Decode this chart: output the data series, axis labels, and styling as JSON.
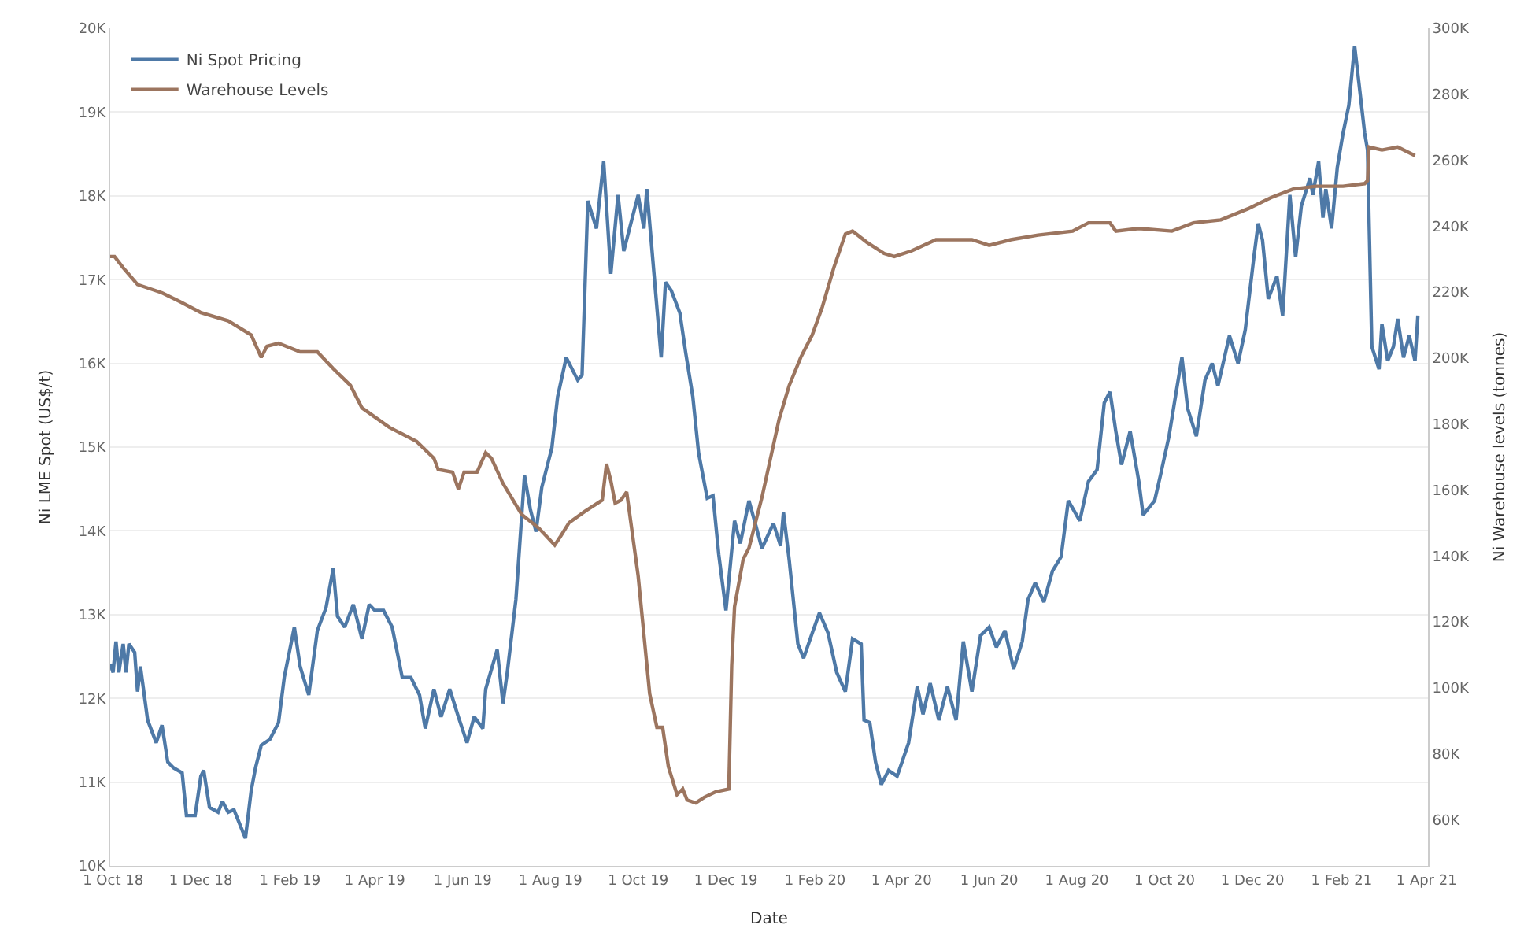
{
  "chart_data": {
    "type": "line",
    "xlabel": "Date",
    "ylabel": "Ni LME Spot (US$/t)",
    "y2label": "Ni Warehouse levels (tonnes)",
    "legend": "top left",
    "grid": "y",
    "line_style": "solid",
    "xlim": [
      "2018-09-29",
      "2021-04-02"
    ],
    "xticks": [
      {
        "value": "2018-10-01",
        "label": "1 Oct 18"
      },
      {
        "value": "2018-12-01",
        "label": "1 Dec 18"
      },
      {
        "value": "2019-02-01",
        "label": "1 Feb 19"
      },
      {
        "value": "2019-04-01",
        "label": "1 Apr 19"
      },
      {
        "value": "2019-06-01",
        "label": "1 Jun 19"
      },
      {
        "value": "2019-08-01",
        "label": "1 Aug 19"
      },
      {
        "value": "2019-10-01",
        "label": "1 Oct 19"
      },
      {
        "value": "2019-12-01",
        "label": "1 Dec 19"
      },
      {
        "value": "2020-02-01",
        "label": "1 Feb 20"
      },
      {
        "value": "2020-04-01",
        "label": "1 Apr 20"
      },
      {
        "value": "2020-06-01",
        "label": "1 Jun 20"
      },
      {
        "value": "2020-08-01",
        "label": "1 Aug 20"
      },
      {
        "value": "2020-10-01",
        "label": "1 Oct 20"
      },
      {
        "value": "2020-12-01",
        "label": "1 Dec 20"
      },
      {
        "value": "2021-02-01",
        "label": "1 Feb 21"
      },
      {
        "value": "2021-04-01",
        "label": "1 Apr 21"
      }
    ],
    "ylim": [
      10,
      20
    ],
    "yticks": [
      {
        "value": 10,
        "label": "10K"
      },
      {
        "value": 11,
        "label": "11K"
      },
      {
        "value": 12,
        "label": "12K"
      },
      {
        "value": 13,
        "label": "13K"
      },
      {
        "value": 14,
        "label": "14K"
      },
      {
        "value": 15,
        "label": "15K"
      },
      {
        "value": 16,
        "label": "16K"
      },
      {
        "value": 17,
        "label": "17K"
      },
      {
        "value": 18,
        "label": "18K"
      },
      {
        "value": 19,
        "label": "19K"
      },
      {
        "value": 20,
        "label": "20K"
      }
    ],
    "y2lim": [
      46,
      300
    ],
    "y2ticks": [
      {
        "value": 60,
        "label": "60K"
      },
      {
        "value": 80,
        "label": "80K"
      },
      {
        "value": 100,
        "label": "100K"
      },
      {
        "value": 120,
        "label": "120K"
      },
      {
        "value": 140,
        "label": "140K"
      },
      {
        "value": 160,
        "label": "160K"
      },
      {
        "value": 180,
        "label": "180K"
      },
      {
        "value": 200,
        "label": "200K"
      },
      {
        "value": 220,
        "label": "220K"
      },
      {
        "value": 240,
        "label": "240K"
      },
      {
        "value": 260,
        "label": "260K"
      },
      {
        "value": 280,
        "label": "280K"
      },
      {
        "value": 300,
        "label": "300K"
      }
    ],
    "series": [
      {
        "name": "Ni Spot Pricing",
        "color": "#4e79a7",
        "axis": "y",
        "x": [
          "2018-09-29",
          "2018-10-01",
          "2018-10-03",
          "2018-10-05",
          "2018-10-08",
          "2018-10-10",
          "2018-10-12",
          "2018-10-16",
          "2018-10-18",
          "2018-10-20",
          "2018-10-25",
          "2018-10-31",
          "2018-11-04",
          "2018-11-08",
          "2018-11-12",
          "2018-11-18",
          "2018-11-21",
          "2018-11-27",
          "2018-12-01",
          "2018-12-03",
          "2018-12-07",
          "2018-12-13",
          "2018-12-16",
          "2018-12-20",
          "2018-12-24",
          "2018-12-28",
          "2019-01-01",
          "2019-01-05",
          "2019-01-08",
          "2019-01-12",
          "2019-01-18",
          "2019-01-24",
          "2019-01-28",
          "2019-02-04",
          "2019-02-08",
          "2019-02-14",
          "2019-02-20",
          "2019-02-26",
          "2019-03-03",
          "2019-03-06",
          "2019-03-11",
          "2019-03-17",
          "2019-03-23",
          "2019-03-28",
          "2019-04-01",
          "2019-04-07",
          "2019-04-13",
          "2019-04-20",
          "2019-04-26",
          "2019-05-02",
          "2019-05-06",
          "2019-05-12",
          "2019-05-17",
          "2019-05-23",
          "2019-05-29",
          "2019-06-04",
          "2019-06-09",
          "2019-06-15",
          "2019-06-17",
          "2019-06-25",
          "2019-06-29",
          "2019-07-02",
          "2019-07-08",
          "2019-07-14",
          "2019-07-18",
          "2019-07-22",
          "2019-07-26",
          "2019-08-02",
          "2019-08-06",
          "2019-08-12",
          "2019-08-20",
          "2019-08-23",
          "2019-08-27",
          "2019-09-02",
          "2019-09-07",
          "2019-09-12",
          "2019-09-17",
          "2019-09-21",
          "2019-09-25",
          "2019-10-01",
          "2019-10-05",
          "2019-10-07",
          "2019-10-12",
          "2019-10-17",
          "2019-10-20",
          "2019-10-24",
          "2019-10-30",
          "2019-11-03",
          "2019-11-08",
          "2019-11-12",
          "2019-11-18",
          "2019-11-22",
          "2019-11-26",
          "2019-12-01",
          "2019-12-07",
          "2019-12-11",
          "2019-12-17",
          "2019-12-22",
          "2019-12-26",
          "2020-01-03",
          "2020-01-08",
          "2020-01-10",
          "2020-01-14",
          "2020-01-20",
          "2020-01-24",
          "2020-01-30",
          "2020-02-04",
          "2020-02-10",
          "2020-02-16",
          "2020-02-22",
          "2020-02-27",
          "2020-03-04",
          "2020-03-06",
          "2020-03-10",
          "2020-03-14",
          "2020-03-18",
          "2020-03-23",
          "2020-03-29",
          "2020-04-06",
          "2020-04-12",
          "2020-04-16",
          "2020-04-21",
          "2020-04-27",
          "2020-05-03",
          "2020-05-09",
          "2020-05-14",
          "2020-05-20",
          "2020-05-26",
          "2020-06-01",
          "2020-06-06",
          "2020-06-12",
          "2020-06-18",
          "2020-06-24",
          "2020-06-28",
          "2020-07-03",
          "2020-07-09",
          "2020-07-15",
          "2020-07-21",
          "2020-07-26",
          "2020-08-03",
          "2020-08-09",
          "2020-08-15",
          "2020-08-20",
          "2020-08-24",
          "2020-08-28",
          "2020-09-01",
          "2020-09-07",
          "2020-09-13",
          "2020-09-16",
          "2020-09-24",
          "2020-09-28",
          "2020-10-04",
          "2020-10-09",
          "2020-10-13",
          "2020-10-17",
          "2020-10-23",
          "2020-10-29",
          "2020-11-03",
          "2020-11-07",
          "2020-11-15",
          "2020-11-21",
          "2020-11-26",
          "2020-12-02",
          "2020-12-05",
          "2020-12-08",
          "2020-12-12",
          "2020-12-18",
          "2020-12-22",
          "2020-12-27",
          "2020-12-31",
          "2021-01-04",
          "2021-01-10",
          "2021-01-12",
          "2021-01-16",
          "2021-01-19",
          "2021-01-21",
          "2021-01-25",
          "2021-01-29",
          "2021-02-02",
          "2021-02-06",
          "2021-02-10",
          "2021-02-13",
          "2021-02-17",
          "2021-02-19",
          "2021-02-20",
          "2021-02-22",
          "2021-02-27",
          "2021-03-01",
          "2021-03-05",
          "2021-03-09",
          "2021-03-12",
          "2021-03-16",
          "2021-03-20",
          "2021-03-24",
          "2021-03-26"
        ],
        "values": [
          12.41,
          12.31,
          12.68,
          12.31,
          12.65,
          12.31,
          12.65,
          12.55,
          12.08,
          12.38,
          11.74,
          11.47,
          11.68,
          11.24,
          11.17,
          11.11,
          10.6,
          10.6,
          11.07,
          11.14,
          10.7,
          10.64,
          10.77,
          10.64,
          10.67,
          10.5,
          10.33,
          10.9,
          11.17,
          11.44,
          11.51,
          11.71,
          12.25,
          12.85,
          12.38,
          12.04,
          12.81,
          13.08,
          13.55,
          12.98,
          12.85,
          13.12,
          12.71,
          13.12,
          13.05,
          13.05,
          12.85,
          12.25,
          12.25,
          12.04,
          11.64,
          12.11,
          11.78,
          12.11,
          11.78,
          11.47,
          11.78,
          11.64,
          12.11,
          12.58,
          11.94,
          12.31,
          13.18,
          14.66,
          14.26,
          13.99,
          14.52,
          14.99,
          15.6,
          16.07,
          15.8,
          15.86,
          17.94,
          17.61,
          18.41,
          17.07,
          18.01,
          17.34,
          17.61,
          18.01,
          17.61,
          18.08,
          17.07,
          16.07,
          16.97,
          16.87,
          16.6,
          16.13,
          15.6,
          14.93,
          14.39,
          14.42,
          13.72,
          13.05,
          14.12,
          13.85,
          14.36,
          14.05,
          13.79,
          14.09,
          13.82,
          14.22,
          13.65,
          12.65,
          12.48,
          12.78,
          13.02,
          12.78,
          12.31,
          12.08,
          12.71,
          12.65,
          11.74,
          11.71,
          11.24,
          10.97,
          11.14,
          11.07,
          11.47,
          12.14,
          11.81,
          12.18,
          11.74,
          12.14,
          11.74,
          12.68,
          12.08,
          12.75,
          12.85,
          12.61,
          12.81,
          12.35,
          12.68,
          13.18,
          13.38,
          13.15,
          13.52,
          13.69,
          14.36,
          14.12,
          14.59,
          14.73,
          15.53,
          15.66,
          15.19,
          14.79,
          15.19,
          14.59,
          14.19,
          14.36,
          14.66,
          15.13,
          15.66,
          16.07,
          15.46,
          15.13,
          15.8,
          16.0,
          15.73,
          16.33,
          16.0,
          16.4,
          17.27,
          17.67,
          17.47,
          16.77,
          17.04,
          16.57,
          18.01,
          17.27,
          17.88,
          18.21,
          18.01,
          18.41,
          17.74,
          18.08,
          17.61,
          18.34,
          18.75,
          19.08,
          19.79,
          19.35,
          18.75,
          18.55,
          17.74,
          16.2,
          15.93,
          16.47,
          16.03,
          16.2,
          16.53,
          16.07,
          16.33,
          16.03,
          16.57
        ]
      },
      {
        "name": "Warehouse Levels",
        "color": "#9c755f",
        "axis": "y2",
        "x": [
          "2018-09-29",
          "2018-10-02",
          "2018-10-08",
          "2018-10-18",
          "2018-11-04",
          "2018-11-16",
          "2018-12-01",
          "2018-12-20",
          "2019-01-05",
          "2019-01-12",
          "2019-01-16",
          "2019-01-24",
          "2019-02-08",
          "2019-02-20",
          "2019-03-03",
          "2019-03-15",
          "2019-03-23",
          "2019-04-11",
          "2019-04-30",
          "2019-05-12",
          "2019-05-15",
          "2019-05-25",
          "2019-05-29",
          "2019-06-02",
          "2019-06-11",
          "2019-06-17",
          "2019-06-21",
          "2019-06-29",
          "2019-07-12",
          "2019-07-24",
          "2019-08-04",
          "2019-08-08",
          "2019-08-14",
          "2019-08-25",
          "2019-09-06",
          "2019-09-09",
          "2019-09-12",
          "2019-09-15",
          "2019-09-19",
          "2019-09-23",
          "2019-10-01",
          "2019-10-09",
          "2019-10-14",
          "2019-10-18",
          "2019-10-22",
          "2019-10-28",
          "2019-11-01",
          "2019-11-04",
          "2019-11-10",
          "2019-11-16",
          "2019-11-24",
          "2019-12-03",
          "2019-12-05",
          "2019-12-07",
          "2019-12-13",
          "2019-12-17",
          "2019-12-26",
          "2020-01-01",
          "2020-01-07",
          "2020-01-14",
          "2020-01-22",
          "2020-01-30",
          "2020-02-06",
          "2020-02-14",
          "2020-02-22",
          "2020-02-27",
          "2020-03-08",
          "2020-03-20",
          "2020-03-27",
          "2020-04-08",
          "2020-04-25",
          "2020-05-20",
          "2020-06-01",
          "2020-06-16",
          "2020-07-05",
          "2020-07-29",
          "2020-08-09",
          "2020-08-24",
          "2020-08-28",
          "2020-09-13",
          "2020-10-06",
          "2020-10-21",
          "2020-11-09",
          "2020-11-28",
          "2020-12-14",
          "2020-12-29",
          "2021-01-14",
          "2021-02-02",
          "2021-02-17",
          "2021-02-19",
          "2021-02-20",
          "2021-03-01",
          "2021-03-12",
          "2021-03-24"
        ],
        "values": [
          230.8,
          230.8,
          227.4,
          222.3,
          219.8,
          217.2,
          213.8,
          211.3,
          207.0,
          200.2,
          203.6,
          204.5,
          201.9,
          201.9,
          196.8,
          191.7,
          184.9,
          179.0,
          174.7,
          169.6,
          166.2,
          165.4,
          160.3,
          165.4,
          165.4,
          171.3,
          169.6,
          162.0,
          152.6,
          148.4,
          143.3,
          145.9,
          150.1,
          153.5,
          156.9,
          167.9,
          162.8,
          156.0,
          156.9,
          159.4,
          133.9,
          98.2,
          88.0,
          88.0,
          76.1,
          67.6,
          69.3,
          66.0,
          65.1,
          66.8,
          68.5,
          69.3,
          106.7,
          124.6,
          139.0,
          142.4,
          157.7,
          169.6,
          181.5,
          191.7,
          200.2,
          207.0,
          215.5,
          227.4,
          237.6,
          238.5,
          235.1,
          231.7,
          230.8,
          232.5,
          235.9,
          235.9,
          234.2,
          235.9,
          237.3,
          238.5,
          241.0,
          241.0,
          238.5,
          239.3,
          238.5,
          241.0,
          241.9,
          245.3,
          248.7,
          251.2,
          252.1,
          252.1,
          252.9,
          253.8,
          264.0,
          263.1,
          264.0,
          261.4
        ]
      }
    ]
  }
}
